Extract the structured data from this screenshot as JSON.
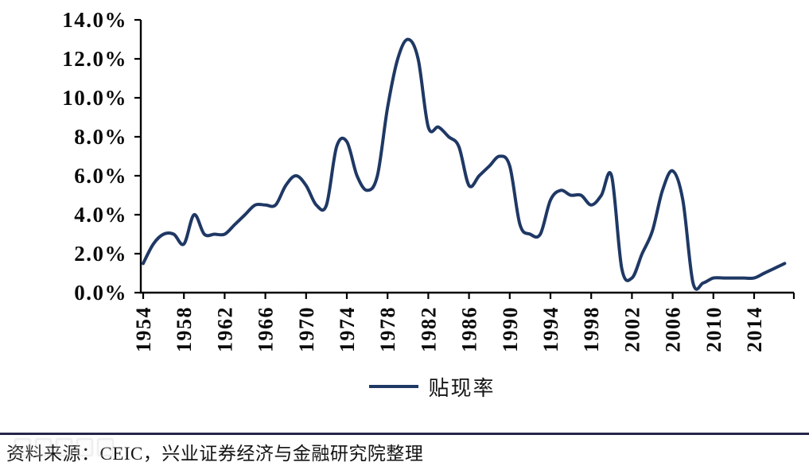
{
  "chart_data": {
    "type": "line",
    "title": "",
    "xlabel": "",
    "ylabel": "",
    "grid": false,
    "legend_position": "bottom",
    "ylim": [
      0,
      14
    ],
    "xlim": [
      1954,
      2018
    ],
    "y_ticks": [
      0,
      2,
      4,
      6,
      8,
      10,
      12,
      14
    ],
    "y_tick_labels": [
      "0.0%",
      "2.0%",
      "4.0%",
      "6.0%",
      "8.0%",
      "10.0%",
      "12.0%",
      "14.0%"
    ],
    "x_ticks": [
      1954,
      1958,
      1962,
      1966,
      1970,
      1974,
      1978,
      1982,
      1986,
      1990,
      1994,
      1998,
      2002,
      2006,
      2010,
      2014
    ],
    "series": [
      {
        "name": "贴现率",
        "color": "#1F3864",
        "x": [
          1954,
          1955,
          1956,
          1957,
          1958,
          1959,
          1960,
          1961,
          1962,
          1963,
          1964,
          1965,
          1966,
          1967,
          1968,
          1969,
          1970,
          1971,
          1972,
          1973,
          1974,
          1975,
          1976,
          1977,
          1978,
          1979,
          1980,
          1981,
          1982,
          1983,
          1984,
          1985,
          1986,
          1987,
          1988,
          1989,
          1990,
          1991,
          1992,
          1993,
          1994,
          1995,
          1996,
          1997,
          1998,
          1999,
          2000,
          2001,
          2002,
          2003,
          2004,
          2005,
          2006,
          2007,
          2008,
          2009,
          2010,
          2011,
          2012,
          2013,
          2014,
          2015,
          2016,
          2017
        ],
        "values": [
          1.5,
          2.5,
          3.0,
          3.0,
          2.5,
          4.0,
          3.0,
          3.0,
          3.0,
          3.5,
          4.0,
          4.5,
          4.5,
          4.5,
          5.5,
          6.0,
          5.5,
          4.5,
          4.5,
          7.5,
          7.75,
          6.0,
          5.25,
          6.0,
          9.5,
          12.0,
          13.0,
          12.0,
          8.5,
          8.5,
          8.0,
          7.5,
          5.5,
          6.0,
          6.5,
          7.0,
          6.5,
          3.5,
          3.0,
          3.0,
          4.75,
          5.25,
          5.0,
          5.0,
          4.5,
          5.0,
          6.0,
          1.25,
          0.75,
          2.0,
          3.15,
          5.25,
          6.25,
          4.75,
          0.5,
          0.5,
          0.75,
          0.75,
          0.75,
          0.75,
          0.75,
          1.0,
          1.25,
          1.5
        ]
      }
    ]
  },
  "legend": {
    "label": "贴现率"
  },
  "footer": {
    "source": "资料来源：CEIC，兴业证券经济与金融研究院整理"
  },
  "colors": {
    "line": "#1F3864",
    "axis": "#000000",
    "separator": "#26264A",
    "text": "#141414",
    "background": "#FFFFFF"
  }
}
